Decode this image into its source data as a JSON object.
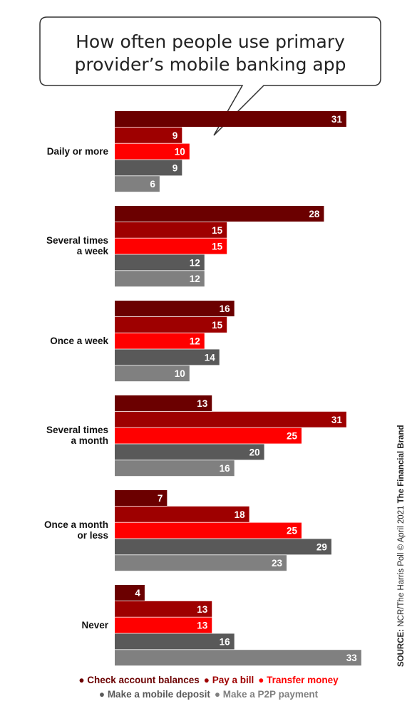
{
  "chart_data": {
    "type": "bar",
    "orientation": "horizontal",
    "title": "How often people use primary\nprovider’s mobile banking app",
    "categories": [
      "Daily or more",
      "Several times\na week",
      "Once a week",
      "Several times\na month",
      "Once a month\nor less",
      "Never"
    ],
    "series": [
      {
        "name": "Check account balances",
        "color": "#6b0000",
        "values": [
          31,
          28,
          16,
          13,
          7,
          4
        ]
      },
      {
        "name": "Pay a bill",
        "color": "#9e0000",
        "values": [
          9,
          15,
          15,
          31,
          18,
          13
        ]
      },
      {
        "name": "Transfer money",
        "color": "#ff0000",
        "values": [
          10,
          15,
          12,
          25,
          25,
          13
        ]
      },
      {
        "name": "Make a mobile deposit",
        "color": "#595959",
        "values": [
          9,
          12,
          14,
          20,
          29,
          16
        ]
      },
      {
        "name": "Make a P2P payment",
        "color": "#808080",
        "values": [
          6,
          12,
          10,
          16,
          23,
          33
        ]
      }
    ],
    "xlim": [
      0,
      33
    ],
    "legend_position": "bottom"
  },
  "source": {
    "label": "SOURCE:",
    "text": " NCR/The Harris Poll © April 2021 ",
    "brand": "The Financial Brand"
  }
}
